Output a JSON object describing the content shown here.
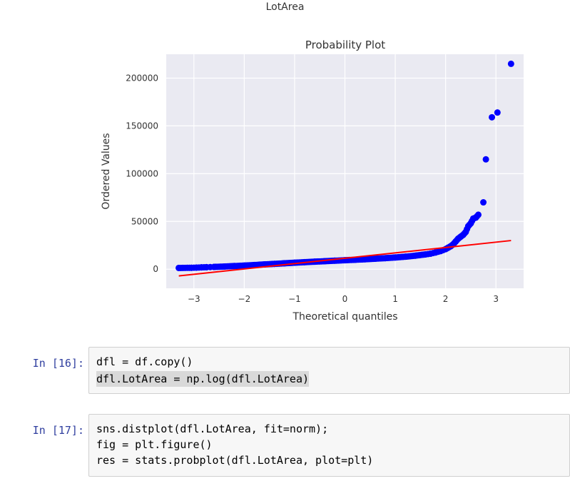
{
  "output": {
    "figure_title": "LotArea"
  },
  "chart_data": {
    "type": "scatter",
    "title": "Probability Plot",
    "xlabel": "Theoretical quantiles",
    "ylabel": "Ordered Values",
    "xlim": [
      -3.55,
      3.55
    ],
    "ylim": [
      -20000,
      225000
    ],
    "x_ticks": [
      -3,
      -2,
      -1,
      0,
      1,
      2,
      3
    ],
    "x_tick_labels": [
      "−3",
      "−2",
      "−1",
      "0",
      "1",
      "2",
      "3"
    ],
    "y_ticks": [
      0,
      50000,
      100000,
      150000,
      200000
    ],
    "y_tick_labels": [
      "0",
      "50000",
      "100000",
      "150000",
      "200000"
    ],
    "grid": true,
    "background": "#eaeaf2",
    "series": [
      {
        "kind": "points",
        "color": "#0000ff",
        "x": [
          -3.3,
          -3.05,
          -2.95,
          -2.85,
          -2.75,
          -2.6,
          -2.4,
          -2.2,
          -2.0,
          -1.8,
          -1.6,
          -1.4,
          -1.2,
          -1.0,
          -0.8,
          -0.6,
          -0.4,
          -0.2,
          0.0,
          0.2,
          0.4,
          0.6,
          0.8,
          1.0,
          1.2,
          1.4,
          1.6,
          1.7,
          1.8,
          1.9,
          2.0,
          2.05,
          2.1,
          2.15,
          2.2,
          2.25,
          2.3,
          2.35,
          2.4,
          2.45,
          2.5,
          2.55,
          2.6,
          2.65,
          2.75,
          2.8,
          2.92,
          3.03,
          3.3
        ],
        "y": [
          1300,
          1500,
          1700,
          1900,
          2100,
          2400,
          2800,
          3300,
          3800,
          4400,
          5000,
          5600,
          6200,
          6800,
          7400,
          7900,
          8400,
          8900,
          9400,
          9900,
          10400,
          11000,
          11600,
          12300,
          13100,
          14200,
          15500,
          16300,
          17500,
          19000,
          21000,
          22500,
          24000,
          26000,
          29000,
          32000,
          34000,
          36000,
          39000,
          45000,
          48000,
          53000,
          54000,
          57000,
          70000,
          115000,
          159000,
          164000,
          215000
        ]
      },
      {
        "kind": "fit-line",
        "color": "#ff0000",
        "x": [
          -3.3,
          3.3
        ],
        "y": [
          -7000,
          30000
        ]
      }
    ]
  },
  "cells": [
    {
      "prompt": "In [16]:",
      "lines": [
        "dfl = df.copy()",
        "dfl.LotArea = np.log(dfl.LotArea)"
      ]
    },
    {
      "prompt": "In [17]:",
      "lines": [
        "sns.distplot(dfl.LotArea, fit=norm);",
        "fig = plt.figure()",
        "res = stats.probplot(dfl.LotArea, plot=plt)"
      ]
    }
  ]
}
